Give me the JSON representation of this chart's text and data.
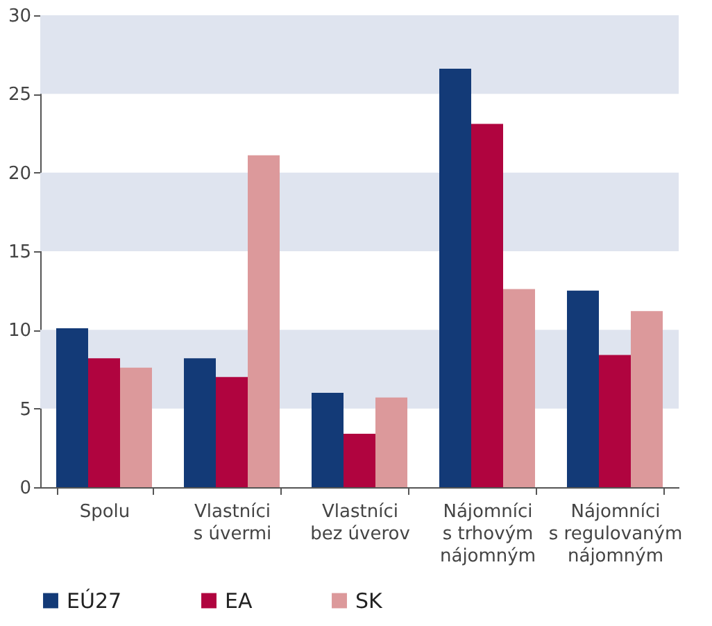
{
  "chart_data": {
    "type": "bar",
    "categories": [
      "Spolu",
      "Vlastníci\ns úvermi",
      "Vlastníci\nbez úverov",
      "Nájomníci\ns trhovým\nnájomným",
      "Nájomníci\ns regulovaným\nnájomným"
    ],
    "series": [
      {
        "name": "EÚ27",
        "color": "#133a77",
        "values": [
          10.1,
          8.2,
          6.0,
          26.6,
          12.5
        ]
      },
      {
        "name": "EA",
        "color": "#b0043f",
        "values": [
          8.2,
          7.0,
          3.4,
          23.1,
          8.4
        ]
      },
      {
        "name": "SK",
        "color": "#dc999b",
        "values": [
          7.6,
          21.1,
          5.7,
          12.6,
          11.2
        ]
      }
    ],
    "ylim": [
      0,
      30
    ],
    "yticks": [
      0,
      5,
      10,
      15,
      20,
      25,
      30
    ],
    "bands": [
      {
        "axis": "y",
        "from": 5,
        "to": 10,
        "color": "#dfe4ef"
      },
      {
        "axis": "y",
        "from": 15,
        "to": 20,
        "color": "#dfe4ef"
      },
      {
        "axis": "y",
        "from": 25,
        "to": 30,
        "color": "#dfe4ef"
      }
    ],
    "grid": false,
    "legend": "bottom"
  }
}
